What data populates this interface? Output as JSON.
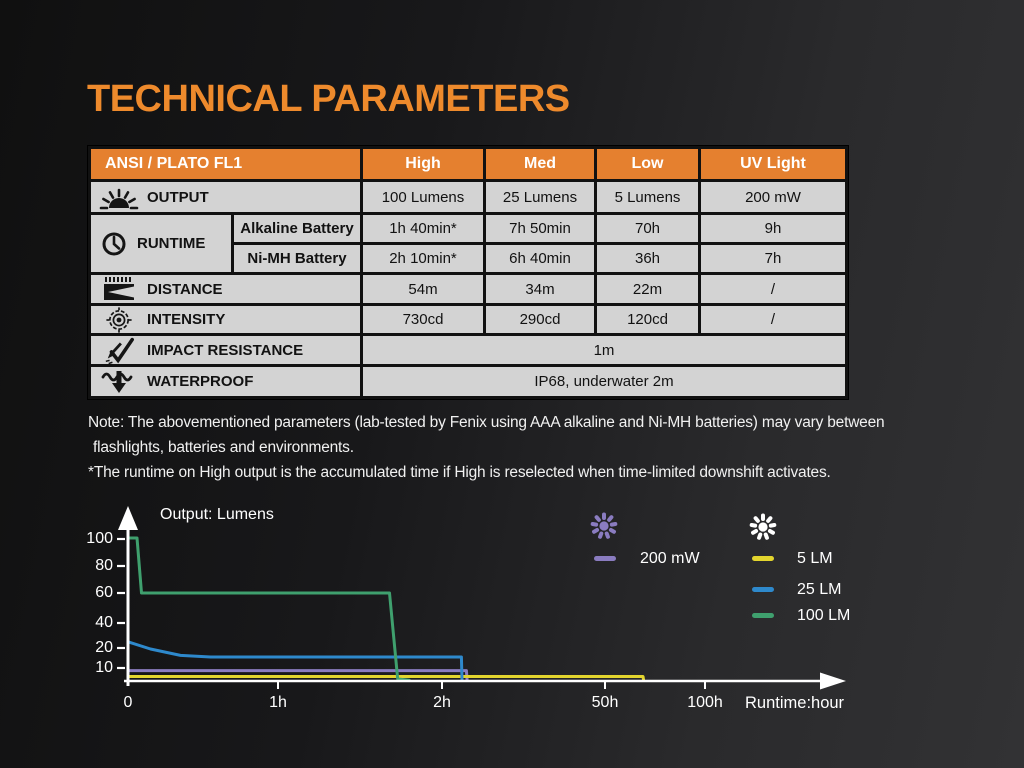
{
  "title": "TECHNICAL PARAMETERS",
  "colors": {
    "title_orange": "#EE8A2C",
    "header_orange": "#E5802F",
    "cell_bg": "#D3D3D3",
    "cell_text": "#121212",
    "table_line": "#111111",
    "note_text": "#F1F1F1",
    "chart_text": "#FFFFFF"
  },
  "table": {
    "header": {
      "label": "ANSI / PLATO FL1",
      "columns": [
        "High",
        "Med",
        "Low",
        "UV Light"
      ]
    },
    "rows": {
      "output": {
        "label": "OUTPUT",
        "icon": "sun-burst-icon",
        "values": [
          "100 Lumens",
          "25 Lumens",
          "5 Lumens",
          "200 mW"
        ]
      },
      "runtime": {
        "label": "RUNTIME",
        "icon": "clock-icon",
        "sub": [
          {
            "label": "Alkaline Battery",
            "values": [
              "1h 40min*",
              "7h 50min",
              "70h",
              "9h"
            ]
          },
          {
            "label": "Ni-MH Battery",
            "values": [
              "2h 10min*",
              "6h 40min",
              "36h",
              "7h"
            ]
          }
        ]
      },
      "distance": {
        "label": "DISTANCE",
        "icon": "beam-distance-icon",
        "values": [
          "54m",
          "34m",
          "22m",
          "/"
        ]
      },
      "intensity": {
        "label": "INTENSITY",
        "icon": "bullseye-icon",
        "values": [
          "730cd",
          "290cd",
          "120cd",
          "/"
        ]
      },
      "impact": {
        "label": "IMPACT RESISTANCE",
        "icon": "impact-check-icon",
        "value": "1m"
      },
      "waterproof": {
        "label": "WATERPROOF",
        "icon": "water-arrow-icon",
        "value": "IP68, underwater 2m"
      }
    }
  },
  "notes": {
    "line1": "Note: The abovementioned parameters (lab-tested by Fenix using AAA alkaline and Ni-MH batteries) may vary between",
    "line2": "flashlights, batteries and environments.",
    "line3": "*The runtime on High output is the accumulated time if High is reselected when time-limited downshift activates."
  },
  "chart_data": {
    "type": "line",
    "title": "Output: Lumens",
    "xlabel": "Runtime:hour",
    "x_ticks": [
      "0",
      "1h",
      "2h",
      "50h",
      "100h"
    ],
    "y_ticks": [
      "100",
      "80",
      "60",
      "40",
      "20",
      "10"
    ],
    "axis_note": "segmented non-linear hour axis (0-1h-2h-50h-100h)",
    "grid": "off",
    "legend_position": "upper right",
    "series": [
      {
        "name": "200 mW",
        "color": "#8A7CC0",
        "points": [
          [
            0,
            8
          ],
          [
            9.2,
            8
          ],
          [
            9.4,
            0.8
          ]
        ]
      },
      {
        "name": "5 LM",
        "color": "#E3D52E",
        "points": [
          [
            0,
            3.5
          ],
          [
            69,
            3.5
          ],
          [
            69.3,
            0.6
          ]
        ]
      },
      {
        "name": "25 LM",
        "color": "#2E89CC",
        "points": [
          [
            0,
            25
          ],
          [
            0.15,
            19.5
          ],
          [
            0.35,
            16.3
          ],
          [
            0.55,
            15.5
          ],
          [
            7.7,
            15.5
          ],
          [
            7.9,
            0.8
          ]
        ]
      },
      {
        "name": "100 LM",
        "color": "#3FA06E",
        "points": [
          [
            0,
            100
          ],
          [
            0.06,
            100
          ],
          [
            0.09,
            60
          ],
          [
            1.68,
            60
          ],
          [
            1.73,
            1.5
          ],
          [
            1.8,
            0.6
          ]
        ]
      }
    ],
    "legend": {
      "uv_icon_color": "#8A7CC0",
      "white_icon_color": "#FFFFFF"
    }
  }
}
